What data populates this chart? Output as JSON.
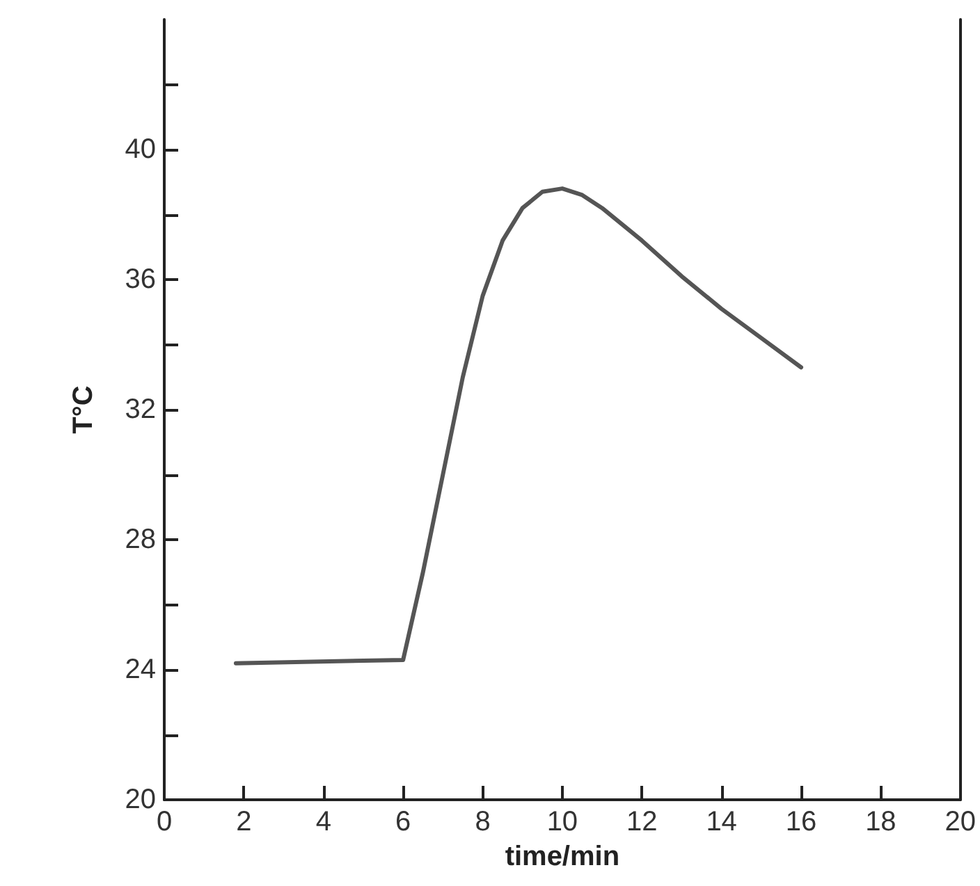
{
  "chart_data": {
    "type": "line",
    "xlabel": "time/min",
    "ylabel": "T°C",
    "x": [
      1.8,
      6,
      6.5,
      7,
      7.5,
      8,
      8.5,
      9,
      9.5,
      10,
      10.5,
      11,
      12,
      13,
      14,
      15,
      16
    ],
    "series": [
      {
        "color": "#555555",
        "values": [
          24.2,
          24.3,
          27,
          30,
          33,
          35.5,
          37.2,
          38.2,
          38.7,
          38.8,
          38.6,
          38.2,
          37.2,
          36.1,
          35.1,
          34.2,
          33.3
        ]
      }
    ],
    "xlim": [
      0,
      20
    ],
    "xticks": [
      0,
      2,
      4,
      6,
      8,
      10,
      12,
      14,
      16,
      18,
      20
    ],
    "ylim": [
      20,
      44
    ],
    "yticks": [
      20,
      {
        "value": 22,
        "label": null
      },
      24,
      {
        "value": 26,
        "label": null
      },
      28,
      {
        "value": 30,
        "label": null
      },
      32,
      {
        "value": 34,
        "label": null
      },
      36,
      {
        "value": 38,
        "label": null
      },
      40,
      {
        "value": 42,
        "label": null
      }
    ],
    "grid": false,
    "marker": "none",
    "line_style": "solid"
  }
}
